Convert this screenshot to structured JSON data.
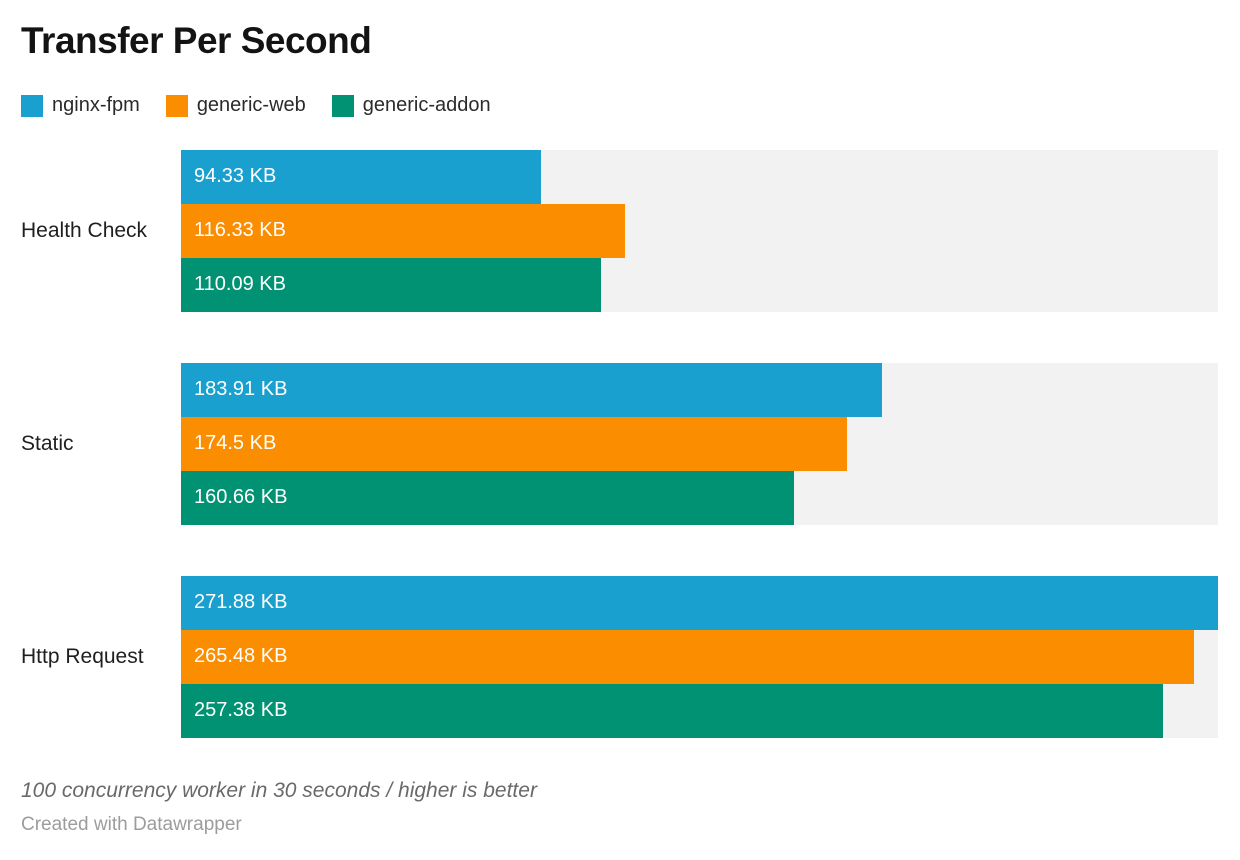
{
  "title": "Transfer Per Second",
  "footer": {
    "note": "100 concurrency worker in 30 seconds / higher is better",
    "credit": "Created with Datawrapper"
  },
  "colors": {
    "track": "#f2f2f2",
    "bar_label": "#ffffff",
    "series_blue": "#19A0CE",
    "series_orange": "#FA8D00",
    "series_teal": "#009272"
  },
  "chart_data": {
    "type": "bar",
    "orientation": "horizontal",
    "title": "Transfer Per Second",
    "unit": "KB",
    "categories": [
      "Health Check",
      "Static",
      "Http Request"
    ],
    "series": [
      {
        "name": "nginx-fpm",
        "color": "#19A0CE",
        "values": [
          94.33,
          183.91,
          271.88
        ],
        "labels": [
          "94.33 KB",
          "183.91 KB",
          "271.88 KB"
        ]
      },
      {
        "name": "generic-web",
        "color": "#FA8D00",
        "values": [
          116.33,
          174.5,
          265.48
        ],
        "labels": [
          "116.33 KB",
          "174.5 KB",
          "265.48 KB"
        ]
      },
      {
        "name": "generic-addon",
        "color": "#009272",
        "values": [
          110.09,
          160.66,
          257.38
        ],
        "labels": [
          "110.09 KB",
          "160.66 KB",
          "257.38 KB"
        ]
      }
    ],
    "xlim": [
      0,
      271.88
    ],
    "grid": false,
    "legend_position": "top",
    "value_labels": "inside-start",
    "note": "100 concurrency worker in 30 seconds / higher is better"
  }
}
